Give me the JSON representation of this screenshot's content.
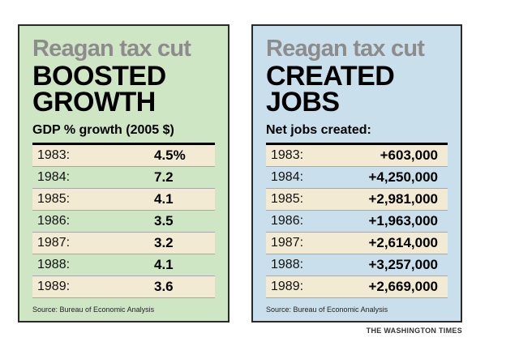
{
  "gdp_panel": {
    "eyebrow": "Reagan tax cut",
    "headline_line1": "BOOSTED",
    "headline_line2": "GROWTH",
    "subhead": "GDP % growth (2005 $)",
    "rows": [
      {
        "year": "1983:",
        "value": "4.5%"
      },
      {
        "year": "1984:",
        "value": "7.2"
      },
      {
        "year": "1985:",
        "value": "4.1"
      },
      {
        "year": "1986:",
        "value": "3.5"
      },
      {
        "year": "1987:",
        "value": "3.2"
      },
      {
        "year": "1988:",
        "value": "4.1"
      },
      {
        "year": "1989:",
        "value": "3.6"
      }
    ],
    "source": "Source: Bureau of Economic Analysis"
  },
  "jobs_panel": {
    "eyebrow": "Reagan tax cut",
    "headline_line1": "CREATED",
    "headline_line2": "JOBS",
    "subhead": "Net jobs created:",
    "rows": [
      {
        "year": "1983:",
        "value": "+603,000"
      },
      {
        "year": "1984:",
        "value": "+4,250,000"
      },
      {
        "year": "1985:",
        "value": "+2,981,000"
      },
      {
        "year": "1986:",
        "value": "+1,963,000"
      },
      {
        "year": "1987:",
        "value": "+2,614,000"
      },
      {
        "year": "1988:",
        "value": "+3,257,000"
      },
      {
        "year": "1989:",
        "value": "+2,669,000"
      }
    ],
    "source": "Source: Bureau of Economic Analysis"
  },
  "credit": "THE WASHINGTON TIMES",
  "colors": {
    "left_panel_bg": "#cfe6c4",
    "right_panel_bg": "#c9e0ec",
    "shaded_row_bg": "#f2ead2",
    "eyebrow_text": "#8c8c8c"
  },
  "chart_data": [
    {
      "type": "table",
      "title": "Reagan tax cut BOOSTED GROWTH",
      "columns": [
        "Year",
        "GDP % growth (2005 $)"
      ],
      "categories": [
        "1983",
        "1984",
        "1985",
        "1986",
        "1987",
        "1988",
        "1989"
      ],
      "values": [
        4.5,
        7.2,
        4.1,
        3.5,
        3.2,
        4.1,
        3.6
      ]
    },
    {
      "type": "table",
      "title": "Reagan tax cut CREATED JOBS",
      "columns": [
        "Year",
        "Net jobs created"
      ],
      "categories": [
        "1983",
        "1984",
        "1985",
        "1986",
        "1987",
        "1988",
        "1989"
      ],
      "values": [
        603000,
        4250000,
        2981000,
        1963000,
        2614000,
        3257000,
        2669000
      ]
    }
  ]
}
